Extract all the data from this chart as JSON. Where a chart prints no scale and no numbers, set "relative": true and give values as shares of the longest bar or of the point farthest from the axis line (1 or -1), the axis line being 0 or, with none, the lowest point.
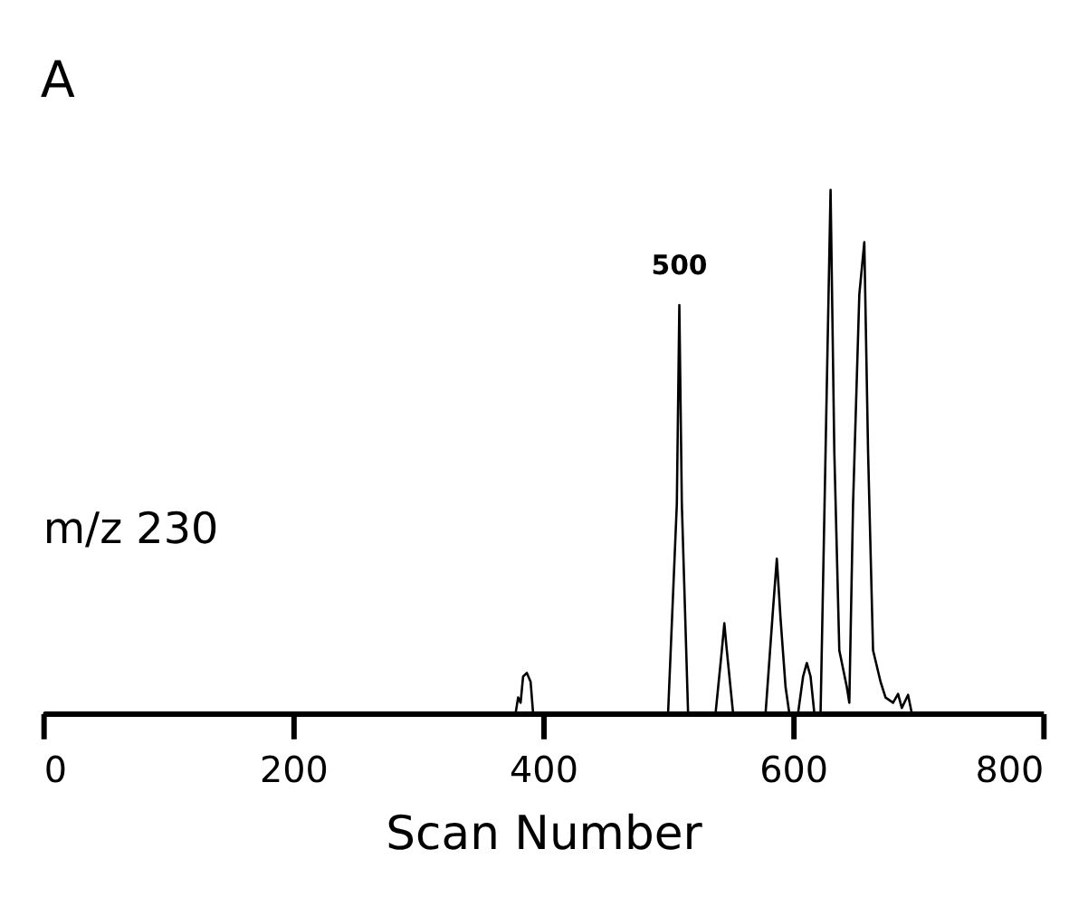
{
  "chart_data": {
    "type": "line",
    "relative": true,
    "title": "A",
    "xlabel": "Scan Number",
    "xlim": [
      0,
      800
    ],
    "xticks": [
      0,
      200,
      400,
      600,
      800
    ],
    "grid": false,
    "marker": "none",
    "line_style": "solid",
    "annotations": [
      "m/z 230",
      {
        "text": "500",
        "x": 509,
        "y": 0.78
      }
    ],
    "series": [
      {
        "color": "#000000",
        "x": [
          0,
          378,
          380,
          382,
          384,
          387,
          390,
          392,
          500,
          507,
          509,
          511,
          516,
          538,
          543,
          545,
          547,
          552,
          578,
          584,
          587,
          590,
          594,
          597,
          604,
          608,
          611,
          614,
          617,
          622,
          626,
          630,
          633,
          637,
          643,
          645,
          648,
          653,
          657,
          660,
          664,
          670,
          674,
          680,
          684,
          687,
          692,
          695,
          800
        ],
        "values": [
          0,
          0,
          0.03,
          0.02,
          0.07,
          0.077,
          0.06,
          0,
          0,
          0.4,
          0.78,
          0.4,
          0,
          0,
          0.12,
          0.172,
          0.12,
          0,
          0,
          0.2,
          0.295,
          0.18,
          0.05,
          0,
          0,
          0.07,
          0.096,
          0.07,
          0,
          0,
          0.5,
          1.0,
          0.5,
          0.12,
          0.05,
          0.02,
          0.4,
          0.8,
          0.9,
          0.5,
          0.12,
          0.06,
          0.03,
          0.02,
          0.037,
          0.01,
          0.035,
          0,
          0
        ]
      }
    ]
  }
}
